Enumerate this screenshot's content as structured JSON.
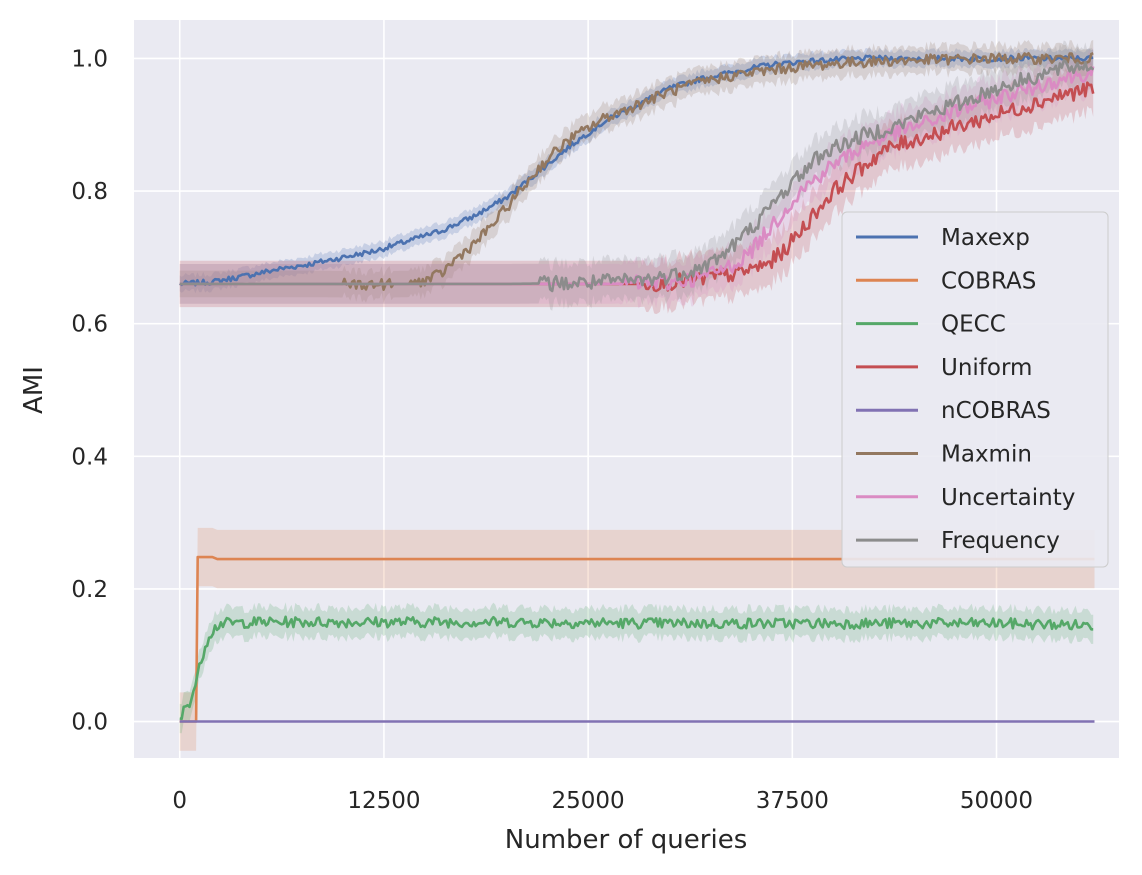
{
  "chart_data": {
    "type": "line",
    "title": "",
    "xlabel": "Number of queries",
    "ylabel": "AMI",
    "xlim": [
      -2800,
      57500
    ],
    "ylim": [
      -0.055,
      1.058
    ],
    "xticks": [
      0,
      12500,
      25000,
      37500,
      50000
    ],
    "yticks": [
      0.0,
      0.2,
      0.4,
      0.6,
      0.8,
      1.0
    ],
    "xtick_labels": [
      "0",
      "12500",
      "25000",
      "37500",
      "50000"
    ],
    "ytick_labels": [
      "0.0",
      "0.2",
      "0.4",
      "0.6",
      "0.8",
      "1.0"
    ],
    "grid": true,
    "legend_position": "center-right",
    "background": "#eaeaf2",
    "series": [
      {
        "name": "Maxexp",
        "color": "#4c72b0",
        "band": 0.012,
        "x": [
          0,
          2000,
          4000,
          6000,
          8000,
          10000,
          12000,
          14000,
          16000,
          18000,
          20000,
          22000,
          24000,
          26000,
          28000,
          30000,
          32000,
          34000,
          36000,
          38000,
          40000,
          42000,
          46000,
          50000,
          56000
        ],
        "y": [
          0.66,
          0.663,
          0.672,
          0.682,
          0.69,
          0.7,
          0.71,
          0.725,
          0.74,
          0.762,
          0.79,
          0.83,
          0.87,
          0.905,
          0.93,
          0.955,
          0.97,
          0.98,
          0.99,
          0.995,
          0.998,
          1.0,
          1.0,
          1.0,
          1.0
        ],
        "noise": 0.004
      },
      {
        "name": "COBRAS",
        "color": "#dd8452",
        "band": 0.044,
        "x": [
          0,
          800,
          1000,
          1100,
          2000,
          2300,
          2400,
          10000,
          20000,
          30000,
          40000,
          50000,
          56000
        ],
        "y": [
          0.0,
          0.0,
          0.0,
          0.248,
          0.248,
          0.245,
          0.245,
          0.245,
          0.245,
          0.245,
          0.245,
          0.245,
          0.245
        ],
        "noise": 0.0
      },
      {
        "name": "QECC",
        "color": "#55a868",
        "band": 0.022,
        "x": [
          0,
          300,
          600,
          900,
          1200,
          1500,
          1800,
          2100,
          2500,
          5000,
          10000,
          20000,
          30000,
          40000,
          50000,
          56000
        ],
        "y": [
          0.0,
          0.02,
          0.03,
          0.05,
          0.08,
          0.11,
          0.13,
          0.14,
          0.148,
          0.15,
          0.15,
          0.15,
          0.148,
          0.148,
          0.148,
          0.145
        ],
        "noise": 0.008
      },
      {
        "name": "Uniform",
        "color": "#c44e52",
        "band": 0.035,
        "x": [
          0,
          10000,
          20000,
          28000,
          30000,
          32000,
          34000,
          36000,
          37000,
          38000,
          39000,
          40000,
          41000,
          42000,
          43000,
          44000,
          46000,
          48000,
          50000,
          52000,
          54000,
          56000
        ],
        "y": [
          0.66,
          0.66,
          0.66,
          0.66,
          0.662,
          0.668,
          0.675,
          0.69,
          0.71,
          0.74,
          0.77,
          0.8,
          0.82,
          0.84,
          0.86,
          0.87,
          0.885,
          0.9,
          0.915,
          0.93,
          0.945,
          0.955
        ],
        "noise": 0.012
      },
      {
        "name": "nCOBRAS",
        "color": "#8172b3",
        "band": 0.0,
        "x": [
          0,
          56000
        ],
        "y": [
          0.0,
          0.0
        ],
        "noise": 0.0
      },
      {
        "name": "Maxmin",
        "color": "#937860",
        "band": 0.02,
        "x": [
          0,
          8000,
          12000,
          14000,
          15000,
          16000,
          17000,
          18000,
          19000,
          20000,
          21000,
          22000,
          23000,
          24000,
          25000,
          26000,
          28000,
          30000,
          32000,
          34000,
          36000,
          38000,
          40000,
          42000,
          46000,
          50000,
          56000
        ],
        "y": [
          0.66,
          0.66,
          0.659,
          0.66,
          0.665,
          0.675,
          0.7,
          0.72,
          0.745,
          0.775,
          0.805,
          0.835,
          0.86,
          0.88,
          0.895,
          0.91,
          0.93,
          0.95,
          0.965,
          0.975,
          0.982,
          0.988,
          0.992,
          0.995,
          0.998,
          1.0,
          1.0
        ],
        "noise": 0.008
      },
      {
        "name": "Uncertainty",
        "color": "#da8bc3",
        "band": 0.03,
        "x": [
          0,
          10000,
          20000,
          26000,
          30000,
          32000,
          34000,
          35000,
          36000,
          37000,
          38000,
          39000,
          40000,
          41000,
          42000,
          44000,
          46000,
          48000,
          50000,
          52000,
          54000,
          56000
        ],
        "y": [
          0.66,
          0.66,
          0.66,
          0.66,
          0.662,
          0.67,
          0.69,
          0.71,
          0.74,
          0.77,
          0.8,
          0.82,
          0.84,
          0.855,
          0.87,
          0.89,
          0.905,
          0.925,
          0.94,
          0.955,
          0.97,
          0.98
        ],
        "noise": 0.012
      },
      {
        "name": "Frequency",
        "color": "#8c8c8c",
        "band": 0.03,
        "x": [
          0,
          10000,
          20000,
          24000,
          28000,
          30000,
          32000,
          33000,
          34000,
          35000,
          36000,
          37000,
          38000,
          39000,
          40000,
          42000,
          44000,
          46000,
          48000,
          50000,
          52000,
          54000,
          56000
        ],
        "y": [
          0.66,
          0.66,
          0.66,
          0.661,
          0.665,
          0.672,
          0.685,
          0.7,
          0.72,
          0.745,
          0.77,
          0.8,
          0.825,
          0.85,
          0.865,
          0.885,
          0.9,
          0.92,
          0.935,
          0.955,
          0.97,
          0.985,
          0.99
        ],
        "noise": 0.012
      }
    ]
  }
}
